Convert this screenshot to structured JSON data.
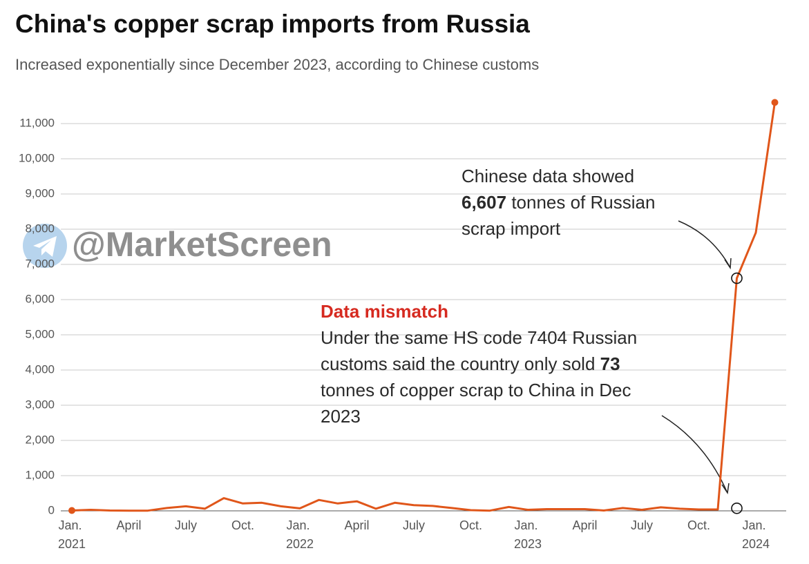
{
  "chart_data": {
    "type": "line",
    "title": "China's copper scrap imports from Russia",
    "subtitle": "Increased exponentially since  December 2023, according to Chinese customs",
    "watermark": "@MarketScreen",
    "categories": [
      "Jan. 2021",
      null,
      null,
      "April",
      null,
      null,
      "July",
      null,
      null,
      "Oct.",
      null,
      null,
      "Jan. 2022",
      null,
      null,
      "April",
      null,
      null,
      "July",
      null,
      null,
      "Oct.",
      null,
      null,
      "Jan. 2023",
      null,
      null,
      "April",
      null,
      null,
      "July",
      null,
      null,
      "Oct.",
      null,
      null,
      "Jan. 2024",
      null
    ],
    "series": [
      {
        "name": "Copper scrap imports (tonnes)",
        "color": "#e0561a",
        "values": [
          10,
          30,
          10,
          5,
          5,
          80,
          130,
          60,
          360,
          210,
          230,
          130,
          70,
          310,
          210,
          270,
          60,
          230,
          160,
          140,
          80,
          20,
          5,
          110,
          30,
          50,
          50,
          50,
          10,
          80,
          30,
          100,
          60,
          40,
          40,
          6607,
          7900,
          11600
        ]
      }
    ],
    "ylim": [
      0,
      11800
    ],
    "yticks": [
      0,
      {
        "value": 1000,
        "label": "1,000"
      },
      {
        "value": 2000,
        "label": "2,000"
      },
      {
        "value": 3000,
        "label": "3,000"
      },
      {
        "value": 4000,
        "label": "4,000"
      },
      {
        "value": 5000,
        "label": "5,000"
      },
      {
        "value": 6000,
        "label": "6,000"
      },
      {
        "value": 7000,
        "label": "7,000"
      },
      {
        "value": 8000,
        "label": "8,000"
      },
      {
        "value": 9000,
        "label": "9,000"
      },
      {
        "value": 10000,
        "label": "10,000"
      },
      {
        "value": 11000,
        "label": "11,000"
      }
    ],
    "grid": true,
    "annotations": [
      {
        "text_before": "Chinese data showed",
        "value": 6607,
        "value_label": "6,607",
        "text_after": "tonnes of Russian scrap import"
      },
      {
        "heading": "Data mismatch",
        "text_before": "Under the same HS code 7404 Russian customs said the country only sold",
        "value": 73,
        "value_label": "73",
        "text_after": "tonnes of copper scrap to China in Dec 2023"
      }
    ]
  }
}
